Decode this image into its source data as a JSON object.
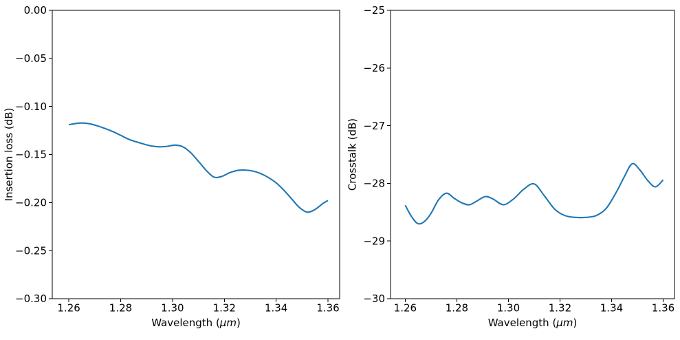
{
  "figure": {
    "background": "#ffffff",
    "text_color": "#000000",
    "spine_color": "#000000"
  },
  "chart_data": [
    {
      "id": "insertion-loss",
      "type": "line",
      "title": "",
      "xlabel": "Wavelength (μm)",
      "xlabel_parts": [
        {
          "t": "Wavelength (",
          "italic": false
        },
        {
          "t": "μm",
          "italic": true
        },
        {
          "t": ")",
          "italic": false
        }
      ],
      "ylabel": "Insertion loss (dB)",
      "line_color": "#1f77b4",
      "grid": false,
      "legend": "none",
      "xlim": [
        1.2536,
        1.3645
      ],
      "ylim": [
        -0.3,
        0.0
      ],
      "xticks": [
        1.26,
        1.28,
        1.3,
        1.32,
        1.34,
        1.36
      ],
      "xtick_labels": [
        "1.26",
        "1.28",
        "1.30",
        "1.32",
        "1.34",
        "1.36"
      ],
      "yticks": [
        0.0,
        -0.05,
        -0.1,
        -0.15,
        -0.2,
        -0.25,
        -0.3
      ],
      "ytick_labels": [
        "0.00",
        "−0.05",
        "−0.10",
        "−0.15",
        "−0.20",
        "−0.25",
        "−0.30"
      ],
      "x": [
        1.26,
        1.2625,
        1.265,
        1.268,
        1.271,
        1.274,
        1.277,
        1.28,
        1.283,
        1.286,
        1.289,
        1.292,
        1.295,
        1.298,
        1.301,
        1.304,
        1.307,
        1.31,
        1.313,
        1.316,
        1.319,
        1.322,
        1.325,
        1.328,
        1.331,
        1.334,
        1.337,
        1.34,
        1.343,
        1.346,
        1.349,
        1.352,
        1.355,
        1.358,
        1.36
      ],
      "y": [
        -0.119,
        -0.1178,
        -0.1172,
        -0.118,
        -0.1202,
        -0.123,
        -0.1262,
        -0.13,
        -0.134,
        -0.1368,
        -0.1392,
        -0.1412,
        -0.142,
        -0.1415,
        -0.1402,
        -0.142,
        -0.148,
        -0.157,
        -0.1665,
        -0.1735,
        -0.1728,
        -0.169,
        -0.1666,
        -0.1662,
        -0.1672,
        -0.1698,
        -0.174,
        -0.1795,
        -0.1872,
        -0.1962,
        -0.2052,
        -0.21,
        -0.2072,
        -0.201,
        -0.1978
      ]
    },
    {
      "id": "crosstalk",
      "type": "line",
      "title": "",
      "xlabel": "Wavelength (μm)",
      "xlabel_parts": [
        {
          "t": "Wavelength (",
          "italic": false
        },
        {
          "t": "μm",
          "italic": true
        },
        {
          "t": ")",
          "italic": false
        }
      ],
      "ylabel": "Crosstalk (dB)",
      "line_color": "#1f77b4",
      "grid": false,
      "legend": "none",
      "xlim": [
        1.2543,
        1.3644
      ],
      "ylim": [
        -30,
        -25
      ],
      "xticks": [
        1.26,
        1.28,
        1.3,
        1.32,
        1.34,
        1.36
      ],
      "xtick_labels": [
        "1.26",
        "1.28",
        "1.30",
        "1.32",
        "1.34",
        "1.36"
      ],
      "yticks": [
        -25,
        -26,
        -27,
        -28,
        -29,
        -30
      ],
      "ytick_labels": [
        "−25",
        "−26",
        "−27",
        "−28",
        "−29",
        "−30"
      ],
      "x": [
        1.26,
        1.2625,
        1.265,
        1.2675,
        1.27,
        1.273,
        1.276,
        1.279,
        1.282,
        1.285,
        1.288,
        1.291,
        1.294,
        1.298,
        1.302,
        1.306,
        1.31,
        1.314,
        1.318,
        1.322,
        1.326,
        1.33,
        1.334,
        1.338,
        1.342,
        1.345,
        1.348,
        1.351,
        1.354,
        1.357,
        1.36
      ],
      "y": [
        -28.38,
        -28.58,
        -28.7,
        -28.66,
        -28.52,
        -28.28,
        -28.17,
        -28.26,
        -28.34,
        -28.37,
        -28.3,
        -28.23,
        -28.27,
        -28.37,
        -28.27,
        -28.1,
        -28.01,
        -28.22,
        -28.45,
        -28.56,
        -28.59,
        -28.59,
        -28.56,
        -28.43,
        -28.14,
        -27.88,
        -27.66,
        -27.77,
        -27.95,
        -28.06,
        -27.94
      ]
    }
  ]
}
